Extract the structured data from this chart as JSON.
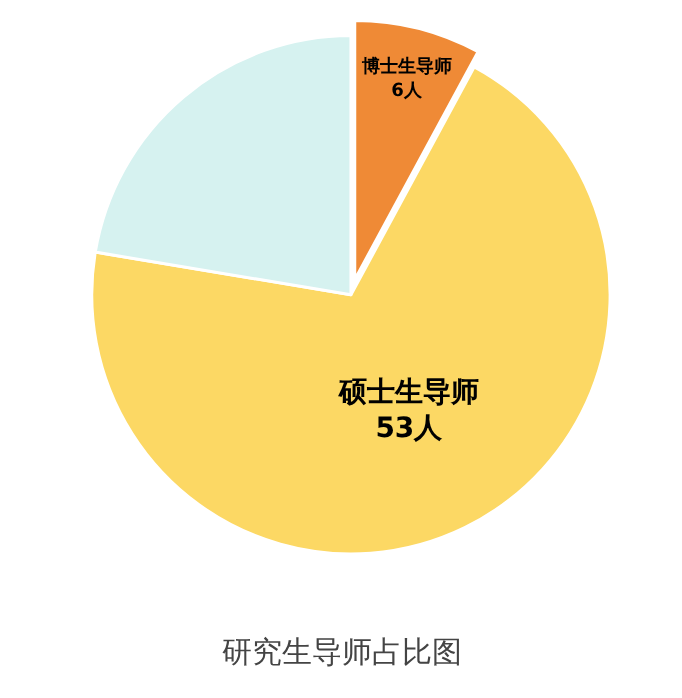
{
  "chart_data": {
    "type": "pie",
    "title": "研究生导师占比图",
    "categories": [
      "博士生导师",
      "硕士生导师",
      null
    ],
    "values": [
      6,
      53,
      17
    ],
    "value_labels": [
      "6人",
      "53人",
      null
    ],
    "colors": [
      "#ef8a36",
      "#fcd864",
      "#d6f2f0"
    ],
    "legend": false
  }
}
